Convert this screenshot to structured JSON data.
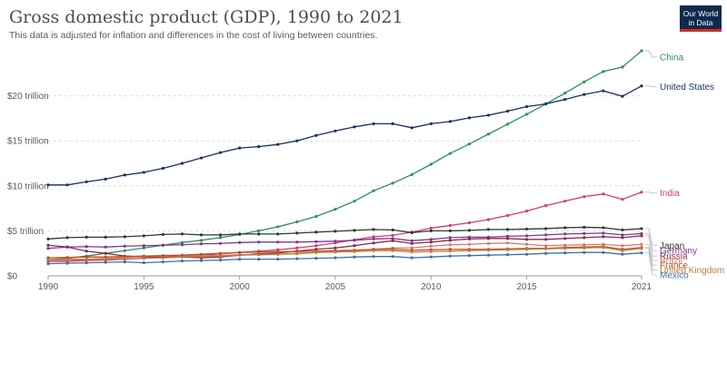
{
  "header": {
    "title": "Gross domestic product (GDP), 1990 to 2021",
    "subtitle": "This data is adjusted for inflation and differences in the cost of living between countries.",
    "logo_line1": "Our World",
    "logo_line2": "in Data"
  },
  "colors": {
    "grid": "#dddddd",
    "axis": "#999999",
    "leader": "#bbbbbb"
  },
  "chart_data": {
    "type": "line",
    "title": "Gross domestic product (GDP), 1990 to 2021",
    "xlabel": "",
    "ylabel": "",
    "xlim": [
      1990,
      2021
    ],
    "ylim": [
      0,
      25
    ],
    "yticks": [
      0,
      5,
      10,
      15,
      20
    ],
    "ytick_labels": [
      "$0",
      "$5 trillion",
      "$10 trillion",
      "$15 trillion",
      "$20 trillion"
    ],
    "xticks": [
      1990,
      1995,
      2000,
      2005,
      2010,
      2015,
      2021
    ],
    "xtick_labels": [
      "1990",
      "1995",
      "2000",
      "2005",
      "2010",
      "2015",
      "2021"
    ],
    "grid": true,
    "legend": "right, labels at line ends",
    "x": [
      1990,
      1991,
      1992,
      1993,
      1994,
      1995,
      1996,
      1997,
      1998,
      1999,
      2000,
      2001,
      2002,
      2003,
      2004,
      2005,
      2006,
      2007,
      2008,
      2009,
      2010,
      2011,
      2012,
      2013,
      2014,
      2015,
      2016,
      2017,
      2018,
      2019,
      2020,
      2021
    ],
    "series": [
      {
        "name": "China",
        "color": "#2f8f5f",
        "label_y": 24.3,
        "values": [
          1.8,
          1.95,
          2.2,
          2.5,
          2.8,
          3.1,
          3.4,
          3.7,
          3.95,
          4.25,
          4.6,
          5.0,
          5.45,
          6.0,
          6.6,
          7.4,
          8.3,
          9.45,
          10.3,
          11.25,
          12.4,
          13.6,
          14.65,
          15.75,
          16.85,
          17.95,
          19.1,
          20.3,
          21.55,
          22.7,
          23.2,
          25.0
        ]
      },
      {
        "name": "United States",
        "color": "#17305f",
        "label_y": 21.0,
        "values": [
          10.1,
          10.1,
          10.45,
          10.75,
          11.2,
          11.5,
          11.95,
          12.5,
          13.1,
          13.7,
          14.2,
          14.35,
          14.6,
          15.0,
          15.6,
          16.1,
          16.55,
          16.9,
          16.9,
          16.45,
          16.9,
          17.15,
          17.55,
          17.85,
          18.3,
          18.8,
          19.1,
          19.6,
          20.15,
          20.55,
          19.95,
          21.1
        ]
      },
      {
        "name": "India",
        "color": "#d6396f",
        "label_y": 9.2,
        "values": [
          1.6,
          1.6,
          1.7,
          1.75,
          1.85,
          1.95,
          2.1,
          2.2,
          2.3,
          2.45,
          2.6,
          2.75,
          2.9,
          3.1,
          3.35,
          3.65,
          4.0,
          4.35,
          4.5,
          4.85,
          5.3,
          5.6,
          5.9,
          6.25,
          6.7,
          7.2,
          7.8,
          8.3,
          8.8,
          9.1,
          8.5,
          9.3
        ]
      },
      {
        "name": "Japan",
        "color": "#2d3a2d",
        "label_y": 3.4,
        "values": [
          4.1,
          4.25,
          4.3,
          4.3,
          4.35,
          4.45,
          4.6,
          4.65,
          4.55,
          4.55,
          4.65,
          4.65,
          4.65,
          4.75,
          4.85,
          4.95,
          5.05,
          5.15,
          5.1,
          4.8,
          5.0,
          5.0,
          5.05,
          5.15,
          5.15,
          5.2,
          5.25,
          5.35,
          5.4,
          5.35,
          5.1,
          5.25
        ]
      },
      {
        "name": "Germany",
        "color": "#7a3a8f",
        "label_y": 2.8,
        "values": [
          3.05,
          3.2,
          3.25,
          3.2,
          3.3,
          3.35,
          3.4,
          3.45,
          3.55,
          3.6,
          3.7,
          3.75,
          3.75,
          3.75,
          3.8,
          3.85,
          3.95,
          4.1,
          4.15,
          3.9,
          4.05,
          4.25,
          4.3,
          4.3,
          4.4,
          4.45,
          4.55,
          4.65,
          4.7,
          4.75,
          4.55,
          4.7
        ]
      },
      {
        "name": "Russia",
        "color": "#8c2a43",
        "label_y": 2.2,
        "values": [
          3.4,
          3.2,
          2.75,
          2.5,
          2.2,
          2.1,
          2.05,
          2.1,
          2.0,
          2.1,
          2.3,
          2.45,
          2.55,
          2.75,
          2.95,
          3.1,
          3.35,
          3.65,
          3.9,
          3.6,
          3.75,
          3.95,
          4.1,
          4.15,
          4.15,
          4.05,
          4.05,
          4.15,
          4.25,
          4.35,
          4.25,
          4.45
        ]
      },
      {
        "name": "Brazil",
        "color": "#d67b6b",
        "label_y": 1.7,
        "values": [
          1.8,
          1.85,
          1.85,
          1.95,
          2.05,
          2.15,
          2.2,
          2.25,
          2.25,
          2.25,
          2.35,
          2.35,
          2.4,
          2.45,
          2.6,
          2.7,
          2.8,
          2.95,
          3.1,
          3.1,
          3.3,
          3.45,
          3.5,
          3.6,
          3.65,
          3.5,
          3.35,
          3.4,
          3.45,
          3.5,
          3.35,
          3.5
        ]
      },
      {
        "name": "France",
        "color": "#b5522a",
        "label_y": 1.2,
        "values": [
          2.0,
          2.05,
          2.1,
          2.1,
          2.15,
          2.2,
          2.25,
          2.3,
          2.4,
          2.5,
          2.6,
          2.65,
          2.7,
          2.7,
          2.75,
          2.8,
          2.85,
          2.95,
          2.95,
          2.85,
          2.9,
          2.95,
          2.95,
          2.95,
          3.0,
          3.05,
          3.05,
          3.15,
          3.2,
          3.25,
          2.95,
          3.15
        ]
      },
      {
        "name": "United Kingdom",
        "color": "#c47a3a",
        "label_y": 0.65,
        "values": [
          1.75,
          1.75,
          1.8,
          1.85,
          1.9,
          1.95,
          2.0,
          2.1,
          2.15,
          2.2,
          2.3,
          2.35,
          2.4,
          2.5,
          2.6,
          2.65,
          2.7,
          2.8,
          2.8,
          2.65,
          2.7,
          2.75,
          2.8,
          2.85,
          2.9,
          2.95,
          3.0,
          3.05,
          3.1,
          3.15,
          2.8,
          3.05
        ]
      },
      {
        "name": "Mexico",
        "color": "#3d6fb3",
        "label_y": 0.1,
        "values": [
          1.35,
          1.4,
          1.45,
          1.5,
          1.55,
          1.45,
          1.55,
          1.65,
          1.7,
          1.75,
          1.85,
          1.85,
          1.85,
          1.9,
          1.95,
          2.0,
          2.1,
          2.15,
          2.15,
          2.0,
          2.1,
          2.2,
          2.25,
          2.3,
          2.35,
          2.4,
          2.5,
          2.55,
          2.6,
          2.6,
          2.4,
          2.55
        ]
      }
    ]
  }
}
